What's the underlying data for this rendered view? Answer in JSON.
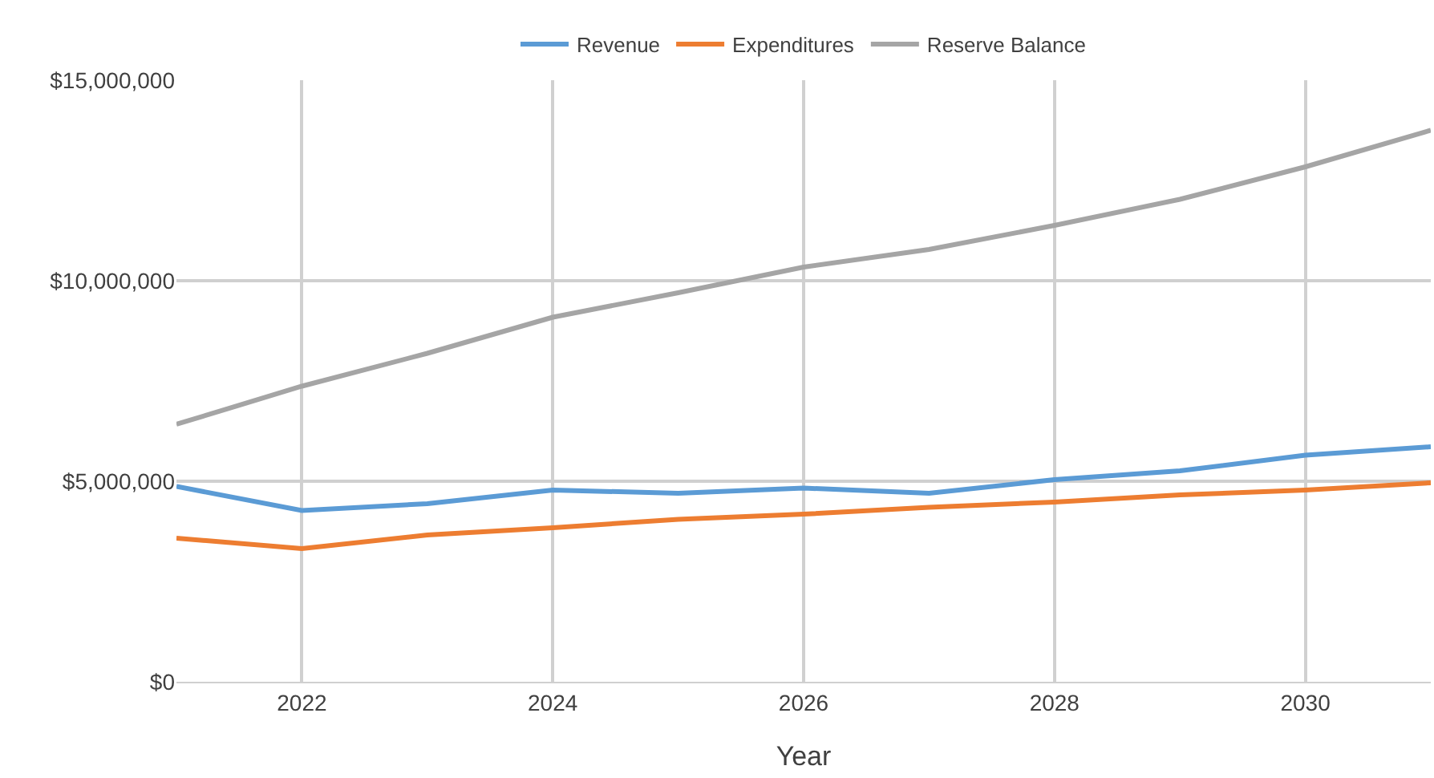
{
  "chart_data": {
    "type": "line",
    "xlabel": "Year",
    "x": [
      2021,
      2022,
      2023,
      2024,
      2025,
      2026,
      2027,
      2028,
      2029,
      2030,
      2031
    ],
    "series": [
      {
        "name": "Revenue",
        "color": "#5b9bd5",
        "values": [
          4870000,
          4270000,
          4440000,
          4780000,
          4700000,
          4830000,
          4700000,
          5040000,
          5260000,
          5650000,
          5860000
        ]
      },
      {
        "name": "Expenditures",
        "color": "#ed7d31",
        "values": [
          3580000,
          3320000,
          3660000,
          3840000,
          4050000,
          4180000,
          4350000,
          4480000,
          4660000,
          4780000,
          4960000
        ]
      },
      {
        "name": "Reserve Balance",
        "color": "#a5a5a5",
        "values": [
          6420000,
          7370000,
          8190000,
          9090000,
          9700000,
          10340000,
          10780000,
          11380000,
          12030000,
          12840000,
          13750000
        ]
      }
    ],
    "xlim": [
      2021,
      2031
    ],
    "xticks": [
      2022,
      2024,
      2026,
      2028,
      2030
    ],
    "ylim": [
      0,
      15000000
    ],
    "yticks": [
      {
        "value": 0,
        "label": "$0"
      },
      {
        "value": 5000000,
        "label": "$5,000,000"
      },
      {
        "value": 10000000,
        "label": "$10,000,000"
      },
      {
        "value": 15000000,
        "label": "$15,000,000"
      }
    ],
    "grid": true,
    "legend": "top",
    "marker": "none",
    "line_style": "solid"
  }
}
